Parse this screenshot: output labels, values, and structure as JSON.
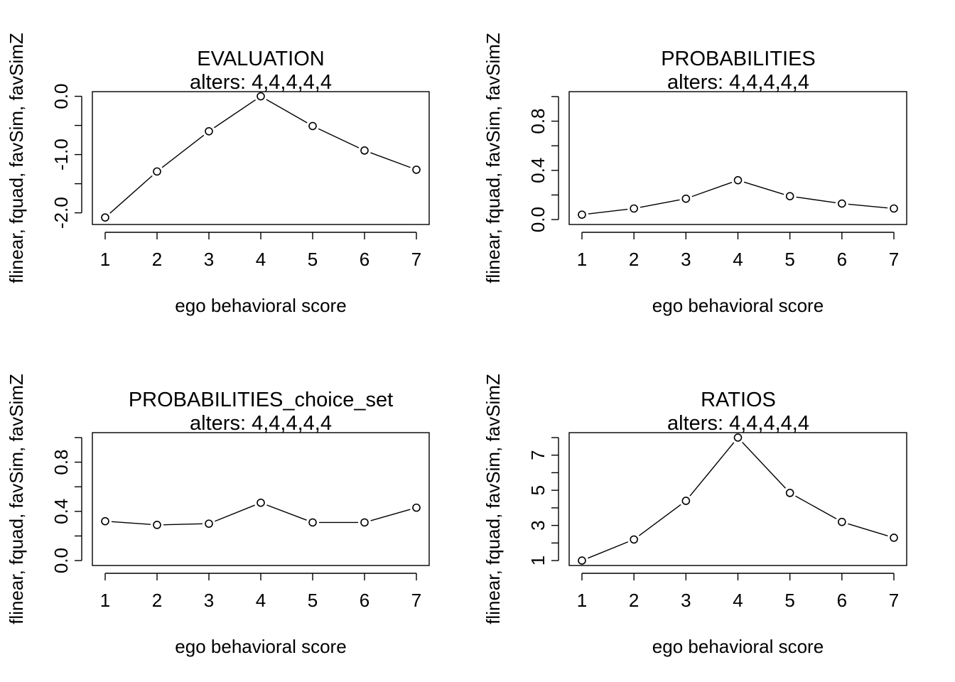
{
  "chart_data": [
    {
      "type": "line",
      "title": "EVALUATION",
      "subtitle": "alters: 4,4,4,4,4",
      "xlabel": "ego behavioral score",
      "ylabel": "flinear, fquad, favSim, favSimZ",
      "x": [
        1,
        2,
        3,
        4,
        5,
        6,
        7
      ],
      "xticks": [
        "1",
        "2",
        "3",
        "4",
        "5",
        "6",
        "7"
      ],
      "values": [
        -2.08,
        -1.29,
        -0.6,
        0.0,
        -0.51,
        -0.93,
        -1.26
      ],
      "ylim": [
        -2.2,
        0.08
      ],
      "yticks_labeled": [
        {
          "v": 0,
          "label": "0.0"
        },
        {
          "v": -1,
          "label": "-1.0"
        },
        {
          "v": -2,
          "label": "-2.0"
        }
      ],
      "yticks_minor": [
        -0.5,
        -1.5
      ],
      "grid": false,
      "marker": "open-circle"
    },
    {
      "type": "line",
      "title": "PROBABILITIES",
      "subtitle": "alters: 4,4,4,4,4",
      "xlabel": "ego behavioral score",
      "ylabel": "flinear, fquad, favSim, favSimZ",
      "x": [
        1,
        2,
        3,
        4,
        5,
        6,
        7
      ],
      "xticks": [
        "1",
        "2",
        "3",
        "4",
        "5",
        "6",
        "7"
      ],
      "values": [
        0.04,
        0.09,
        0.17,
        0.32,
        0.19,
        0.13,
        0.09
      ],
      "ylim": [
        -0.04,
        1.04
      ],
      "yticks_labeled": [
        {
          "v": 0,
          "label": "0.0"
        },
        {
          "v": 0.4,
          "label": "0.4"
        },
        {
          "v": 0.8,
          "label": "0.8"
        }
      ],
      "yticks_minor": [
        0.2,
        0.6,
        1.0
      ],
      "grid": false,
      "marker": "open-circle"
    },
    {
      "type": "line",
      "title": "PROBABILITIES_choice_set",
      "subtitle": "alters: 4,4,4,4,4",
      "xlabel": "ego behavioral score",
      "ylabel": "flinear, fquad, favSim, favSimZ",
      "x": [
        1,
        2,
        3,
        4,
        5,
        6,
        7
      ],
      "xticks": [
        "1",
        "2",
        "3",
        "4",
        "5",
        "6",
        "7"
      ],
      "values": [
        0.32,
        0.29,
        0.3,
        0.47,
        0.31,
        0.31,
        0.43
      ],
      "ylim": [
        -0.04,
        1.04
      ],
      "yticks_labeled": [
        {
          "v": 0,
          "label": "0.0"
        },
        {
          "v": 0.4,
          "label": "0.4"
        },
        {
          "v": 0.8,
          "label": "0.8"
        }
      ],
      "yticks_minor": [
        0.2,
        0.6,
        1.0
      ],
      "grid": false,
      "marker": "open-circle"
    },
    {
      "type": "line",
      "title": "RATIOS",
      "subtitle": "alters: 4,4,4,4,4",
      "xlabel": "ego behavioral score",
      "ylabel": "flinear, fquad, favSim, favSimZ",
      "x": [
        1,
        2,
        3,
        4,
        5,
        6,
        7
      ],
      "xticks": [
        "1",
        "2",
        "3",
        "4",
        "5",
        "6",
        "7"
      ],
      "values": [
        1.0,
        2.2,
        4.4,
        8.0,
        4.85,
        3.2,
        2.3
      ],
      "ylim": [
        0.72,
        8.28
      ],
      "yticks_labeled": [
        {
          "v": 1,
          "label": "1"
        },
        {
          "v": 3,
          "label": "3"
        },
        {
          "v": 5,
          "label": "5"
        },
        {
          "v": 7,
          "label": "7"
        }
      ],
      "yticks_minor": [
        2,
        4,
        6,
        8
      ],
      "grid": false,
      "marker": "open-circle"
    }
  ]
}
